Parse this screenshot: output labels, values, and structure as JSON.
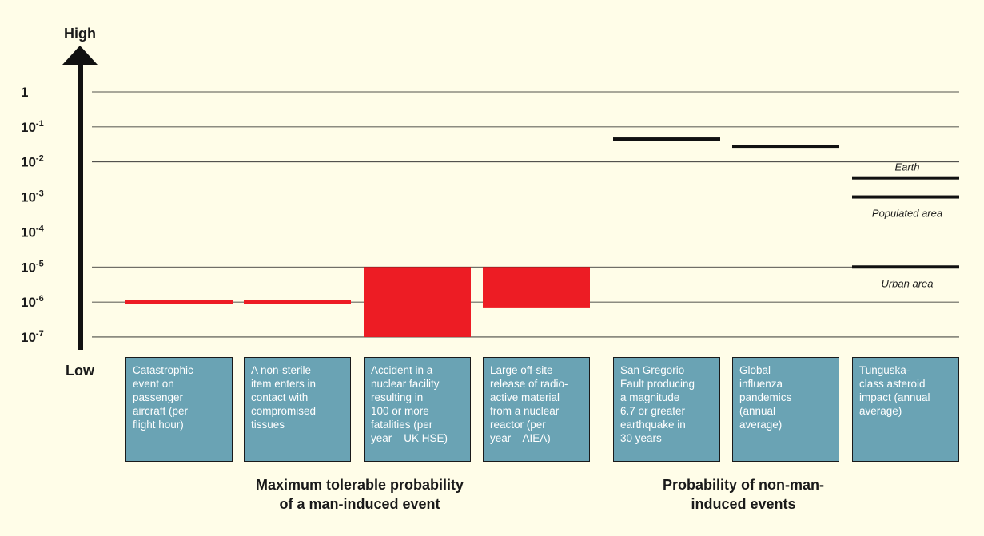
{
  "chart_data": {
    "type": "range-bar",
    "y_scale": "log10",
    "y_axis": {
      "top_label": "High",
      "bottom_label": "Low",
      "ticks": [
        {
          "value": 1,
          "base": "1",
          "exp": ""
        },
        {
          "value": 0.1,
          "base": "10",
          "exp": "-1"
        },
        {
          "value": 0.01,
          "base": "10",
          "exp": "-2"
        },
        {
          "value": 0.001,
          "base": "10",
          "exp": "-3"
        },
        {
          "value": 0.0001,
          "base": "10",
          "exp": "-4"
        },
        {
          "value": 1e-05,
          "base": "10",
          "exp": "-5"
        },
        {
          "value": 1e-06,
          "base": "10",
          "exp": "-6"
        },
        {
          "value": 1e-07,
          "base": "10",
          "exp": "-7"
        }
      ],
      "grid": true
    },
    "groups": [
      {
        "title_lines": [
          "Maximum tolerable probability",
          "of a man-induced event"
        ],
        "color": "#ed1c24",
        "items": [
          {
            "label_lines": [
              "Catastrophic",
              "event on",
              "passenger",
              "aircraft (per",
              "flight hour)"
            ],
            "low": 1e-06,
            "high": 1e-06
          },
          {
            "label_lines": [
              "A non-sterile",
              "item enters in",
              "contact with",
              "compromised",
              "tissues"
            ],
            "low": 1e-06,
            "high": 1e-06
          },
          {
            "label_lines": [
              "Accident in a",
              "nuclear facility",
              "resulting in",
              "100 or more",
              "fatalities (per",
              "year – UK HSE)"
            ],
            "low": 1e-07,
            "high": 1e-05
          },
          {
            "label_lines": [
              "Large off-site",
              "release of radio-",
              "active material",
              "from a nuclear",
              "reactor (per",
              "year – AIEA)"
            ],
            "low": 7e-07,
            "high": 1e-05
          }
        ]
      },
      {
        "title_lines": [
          "Probability of non-man-",
          "induced events"
        ],
        "color": "#111111",
        "items": [
          {
            "label_lines": [
              "San Gregorio",
              "Fault producing",
              "a magnitude",
              "6.7 or greater",
              "earthquake in",
              "30 years"
            ],
            "levels": [
              {
                "value": 0.045,
                "label": ""
              }
            ]
          },
          {
            "label_lines": [
              "Global",
              "influenza",
              "pandemics",
              "(annual",
              "average)"
            ],
            "levels": [
              {
                "value": 0.028,
                "label": ""
              }
            ]
          },
          {
            "label_lines": [
              "Tunguska-",
              "class asteroid",
              "impact (annual",
              "average)"
            ],
            "levels": [
              {
                "value": 0.0035,
                "label": "Earth",
                "label_pos": "above"
              },
              {
                "value": 0.001,
                "label": "Populated area",
                "label_pos": "below"
              },
              {
                "value": 1e-05,
                "label": "Urban area",
                "label_pos": "below"
              }
            ]
          }
        ]
      }
    ]
  }
}
